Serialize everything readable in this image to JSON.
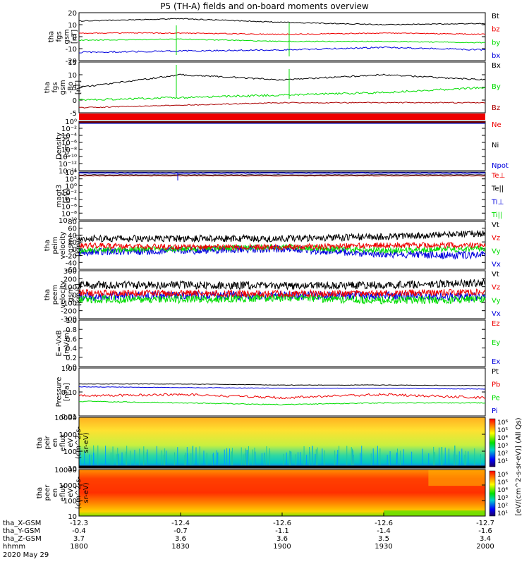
{
  "title": "P5 (TH-A) fields and on-board moments overview",
  "colors": {
    "black": "#000000",
    "red": "#ee0000",
    "green": "#00dd00",
    "blue": "#0000dd",
    "darkred": "#aa0000"
  },
  "panels": [
    {
      "id": "fgs-gsm",
      "ylabel": [
        "tha",
        "fgs",
        "gsm",
        "[nT]"
      ],
      "yticks": [
        "20",
        "10",
        "0",
        "-10",
        "-20"
      ],
      "legend": [
        {
          "t": "Bt",
          "c": "black"
        },
        {
          "t": "bz",
          "c": "red"
        },
        {
          "t": "by",
          "c": "green"
        },
        {
          "t": "bx",
          "c": "blue"
        }
      ]
    },
    {
      "id": "fgs-gse-1",
      "ylabel": [
        "tha",
        "fgs",
        "gsm",
        "-Bo",
        "[nT]"
      ],
      "yticks": [
        "15",
        "10",
        "5",
        "0",
        "-5"
      ],
      "legend": [
        {
          "t": "Bx",
          "c": "black"
        },
        {
          "t": "By",
          "c": "green"
        },
        {
          "t": "Bz",
          "c": "darkred"
        }
      ]
    },
    {
      "id": "density",
      "ylabel": [
        "Density",
        "[cm-3]"
      ],
      "yticks": [
        "10⁰",
        "10⁻²",
        "10⁻⁴",
        "10⁻⁶",
        "10⁻⁸",
        "10⁻¹⁰",
        "10⁻¹²",
        "10⁻¹⁴"
      ],
      "legend": [
        {
          "t": "Ne",
          "c": "red"
        },
        {
          "t": "Ni",
          "c": "black"
        },
        {
          "t": "Npot",
          "c": "blue"
        }
      ]
    },
    {
      "id": "magt3",
      "ylabel": [
        "magt3",
        "[eV]"
      ],
      "yticks": [
        "10⁴",
        "10²",
        "10⁰",
        "10⁻²",
        "10⁻⁴",
        "10⁻⁶",
        "10⁻⁸",
        "10⁻¹⁰"
      ],
      "legend": [
        {
          "t": "Te⊥",
          "c": "red"
        },
        {
          "t": "Te||",
          "c": "black"
        },
        {
          "t": "Ti⊥",
          "c": "blue"
        },
        {
          "t": "Ti||",
          "c": "green"
        }
      ]
    },
    {
      "id": "peim-vel",
      "ylabel": [
        "tha",
        "peim",
        "velocity",
        "gsm",
        "[km/s]"
      ],
      "yticks": [
        "80",
        "60",
        "40",
        "20",
        "0",
        "-20",
        "-40",
        "-60"
      ],
      "legend": [
        {
          "t": "Vt",
          "c": "black"
        },
        {
          "t": "Vz",
          "c": "red"
        },
        {
          "t": "Vy",
          "c": "green"
        },
        {
          "t": "Vx",
          "c": "blue"
        }
      ]
    },
    {
      "id": "peem-vel",
      "ylabel": [
        "tha",
        "peem",
        "velocity",
        "gsm",
        "[km/s]"
      ],
      "yticks": [
        "300",
        "200",
        "100",
        "0",
        "-100",
        "-200",
        "-300"
      ],
      "legend": [
        {
          "t": "Vt",
          "c": "black"
        },
        {
          "t": "Vz",
          "c": "red"
        },
        {
          "t": "Vy",
          "c": "green"
        },
        {
          "t": "Vx",
          "c": "blue"
        }
      ]
    },
    {
      "id": "efield",
      "ylabel": [
        "E=-VxB",
        "[mV/m]"
      ],
      "yticks": [
        "1.0",
        "0.8",
        "0.6",
        "0.4",
        "0.2",
        "0.0"
      ],
      "legend": [
        {
          "t": "Ez",
          "c": "red"
        },
        {
          "t": "Ey",
          "c": "green"
        },
        {
          "t": "Ex",
          "c": "blue"
        }
      ]
    },
    {
      "id": "pressure",
      "ylabel": [
        "Pressure",
        "[nPa]"
      ],
      "yticks": [
        "1.00",
        "0.10",
        "0.01"
      ],
      "legend": [
        {
          "t": "Pt",
          "c": "black"
        },
        {
          "t": "Pb",
          "c": "red"
        },
        {
          "t": "Pe",
          "c": "green"
        },
        {
          "t": "Pi",
          "c": "blue"
        }
      ]
    },
    {
      "id": "peir-spec",
      "ylabel": [
        "tha",
        "peir",
        "en",
        "eflux",
        "eV",
        "(cm^2-s-",
        "sr-eV)"
      ],
      "yticks": [
        "10000",
        "1000",
        "100",
        "10"
      ],
      "legend": []
    },
    {
      "id": "peer-spec",
      "ylabel": [
        "tha",
        "peer",
        "en",
        "eflux",
        "eV",
        "(cm^2-s-",
        "sr-eV)"
      ],
      "yticks": [
        "10000",
        "1000",
        "100",
        "10"
      ],
      "legend": []
    }
  ],
  "colorbar": {
    "label": "[eV/(cm^2-s-sr-eV)] (All Qs)",
    "ticks1": [
      "10⁶",
      "10⁵",
      "10⁴",
      "10³",
      "10²",
      "10¹"
    ],
    "ticks2": [
      "10⁶",
      "10⁵",
      "10⁴",
      "10³",
      "10²",
      "10¹"
    ]
  },
  "xaxis": {
    "rows": [
      {
        "label": "tha_X-GSM",
        "vals": [
          "-12.3",
          "-12.4",
          "-12.6",
          "-12.6",
          "-12.7"
        ]
      },
      {
        "label": "tha_Y-GSM",
        "vals": [
          "-0.4",
          "-0.7",
          "-1.1",
          "-1.4",
          "-1.6"
        ]
      },
      {
        "label": "tha_Z-GSM",
        "vals": [
          "3.7",
          "3.6",
          "3.6",
          "3.5",
          "3.4"
        ]
      },
      {
        "label": "hhmm",
        "vals": [
          "1800",
          "1830",
          "1900",
          "1930",
          "2000"
        ]
      }
    ],
    "date": "2020 May 29"
  },
  "chart_data": [
    {
      "type": "line",
      "title": "P5 (TH-A) fields and on-board moments overview",
      "ylabel": "tha fgs gsm [nT]",
      "ylim": [
        -20,
        20
      ],
      "x": [
        "1800",
        "1830",
        "1900",
        "1930",
        "2000"
      ],
      "series": [
        {
          "name": "Bt",
          "values": [
            13,
            15,
            12,
            10,
            11
          ]
        },
        {
          "name": "bz",
          "values": [
            3,
            3,
            2,
            3,
            2
          ]
        },
        {
          "name": "by",
          "values": [
            -3,
            -2,
            -4,
            -4,
            -5
          ]
        },
        {
          "name": "bx",
          "values": [
            -13,
            -12,
            -11,
            -9,
            -11
          ]
        }
      ]
    },
    {
      "type": "line",
      "ylabel": "tha fgs gsm -Bo [nT]",
      "ylim": [
        -5,
        15
      ],
      "x": [
        "1800",
        "1830",
        "1900",
        "1930",
        "2000"
      ],
      "series": [
        {
          "name": "Bx",
          "values": [
            5,
            10,
            8,
            10,
            8
          ]
        },
        {
          "name": "By",
          "values": [
            0,
            1,
            2,
            3,
            5
          ]
        },
        {
          "name": "Bz",
          "values": [
            -3,
            -2,
            -1,
            -1,
            -1
          ]
        }
      ]
    },
    {
      "type": "line",
      "ylabel": "Density [cm-3]",
      "ylim": [
        "1e-14",
        "1e0"
      ],
      "series": [
        {
          "name": "Ne",
          "values": [
            1,
            1,
            1,
            1,
            1
          ]
        },
        {
          "name": "Ni",
          "values": [
            1,
            1,
            1,
            1,
            1
          ]
        },
        {
          "name": "Npot",
          "values": [
            1,
            1,
            1,
            1,
            1
          ]
        }
      ]
    },
    {
      "type": "line",
      "ylabel": "magt3 [eV]",
      "ylim": [
        "1e-10",
        "1e4"
      ],
      "series": [
        {
          "name": "Te⊥",
          "values": [
            3000,
            3000,
            3000,
            3000,
            3000
          ]
        },
        {
          "name": "Te||",
          "values": [
            3000,
            3000,
            3000,
            3000,
            3000
          ]
        },
        {
          "name": "Ti⊥",
          "values": [
            8000,
            8000,
            8000,
            8000,
            8000
          ]
        },
        {
          "name": "Ti||",
          "values": [
            8000,
            8000,
            8000,
            8000,
            8000
          ]
        }
      ]
    },
    {
      "type": "line",
      "ylabel": "tha peim velocity gsm [km/s]",
      "ylim": [
        -60,
        80
      ],
      "series": [
        {
          "name": "Vt",
          "values": [
            30,
            30,
            30,
            35,
            45
          ]
        },
        {
          "name": "Vz",
          "values": [
            10,
            5,
            5,
            10,
            10
          ]
        },
        {
          "name": "Vy",
          "values": [
            -5,
            0,
            5,
            -5,
            0
          ]
        },
        {
          "name": "Vx",
          "values": [
            -10,
            -5,
            0,
            -15,
            -20
          ]
        }
      ]
    },
    {
      "type": "line",
      "ylabel": "tha peem velocity gsm [km/s]",
      "ylim": [
        -300,
        300
      ],
      "series": [
        {
          "name": "Vt",
          "values": [
            120,
            120,
            110,
            120,
            150
          ]
        },
        {
          "name": "Vz",
          "values": [
            20,
            20,
            10,
            20,
            30
          ]
        },
        {
          "name": "Vy",
          "values": [
            -60,
            -60,
            -40,
            -70,
            -60
          ]
        },
        {
          "name": "Vx",
          "values": [
            -20,
            -10,
            -10,
            -10,
            -30
          ]
        }
      ]
    },
    {
      "type": "line",
      "ylabel": "E=-VxB [mV/m]",
      "ylim": [
        0,
        1.0
      ],
      "series": []
    },
    {
      "type": "line",
      "ylabel": "Pressure [nPa]",
      "ylim": [
        0.01,
        1.0
      ],
      "series": [
        {
          "name": "Pt",
          "values": [
            0.2,
            0.2,
            0.18,
            0.18,
            0.17
          ]
        },
        {
          "name": "Pb",
          "values": [
            0.06,
            0.07,
            0.05,
            0.07,
            0.05
          ]
        },
        {
          "name": "Pe",
          "values": [
            0.035,
            0.03,
            0.025,
            0.03,
            0.03
          ]
        },
        {
          "name": "Pi",
          "values": [
            0.15,
            0.14,
            0.13,
            0.13,
            0.12
          ]
        }
      ]
    },
    {
      "type": "heatmap",
      "ylabel": "tha peir en eflux eV/(cm^2-s-sr-eV)",
      "ylim": [
        5,
        20000
      ]
    },
    {
      "type": "heatmap",
      "ylabel": "tha peer en eflux eV/(cm^2-s-sr-eV)",
      "ylim": [
        5,
        20000
      ]
    }
  ]
}
